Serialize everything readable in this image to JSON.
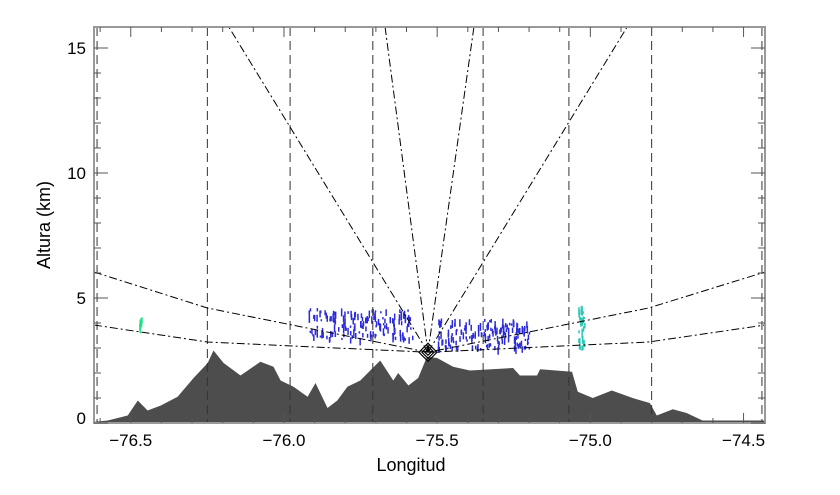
{
  "chart_data": {
    "type": "area",
    "title": "",
    "xlabel": "Longitud",
    "ylabel": "Altura (km)",
    "xlim": [
      -76.62,
      -74.43
    ],
    "ylim": [
      0,
      15.84
    ],
    "x_ticks": [
      "-76.5",
      "-76.0",
      "-75.5",
      "-75.0",
      "-74.5"
    ],
    "x_tick_values": [
      -76.5,
      -76.0,
      -75.5,
      -75.0,
      -74.5
    ],
    "y_ticks": [
      "0",
      "5",
      "10",
      "15"
    ],
    "y_tick_values": [
      0,
      5,
      10,
      15
    ],
    "grid": false,
    "colors": {
      "terrain": "#4d4d4d",
      "echo_blue": "#2b2bd9",
      "echo_green": "#22e08a",
      "echo_cyan": "#29c9b4",
      "lines": "#000000"
    },
    "radar": {
      "lon": -75.53,
      "alt": 2.83,
      "marker": "diamond"
    },
    "terrain": [
      [
        -76.617,
        0.05
      ],
      [
        -76.575,
        0.1
      ],
      [
        -76.51,
        0.3
      ],
      [
        -76.477,
        0.9
      ],
      [
        -76.445,
        0.5
      ],
      [
        -76.402,
        0.7
      ],
      [
        -76.347,
        1.05
      ],
      [
        -76.295,
        1.8
      ],
      [
        -76.249,
        2.4
      ],
      [
        -76.23,
        2.9
      ],
      [
        -76.197,
        2.4
      ],
      [
        -76.142,
        1.9
      ],
      [
        -76.077,
        2.45
      ],
      [
        -76.034,
        2.25
      ],
      [
        -76.011,
        1.7
      ],
      [
        -75.969,
        1.45
      ],
      [
        -75.923,
        1.05
      ],
      [
        -75.897,
        1.6
      ],
      [
        -75.858,
        0.6
      ],
      [
        -75.826,
        0.9
      ],
      [
        -75.793,
        1.45
      ],
      [
        -75.751,
        1.7
      ],
      [
        -75.686,
        2.5
      ],
      [
        -75.643,
        1.7
      ],
      [
        -75.627,
        2.0
      ],
      [
        -75.594,
        1.5
      ],
      [
        -75.562,
        1.8
      ],
      [
        -75.533,
        2.65
      ],
      [
        -75.5,
        2.6
      ],
      [
        -75.448,
        2.25
      ],
      [
        -75.393,
        2.1
      ],
      [
        -75.252,
        2.2
      ],
      [
        -75.23,
        1.9
      ],
      [
        -75.174,
        1.9
      ],
      [
        -75.164,
        2.15
      ],
      [
        -75.06,
        2.05
      ],
      [
        -75.041,
        1.25
      ],
      [
        -74.992,
        1.0
      ],
      [
        -74.93,
        1.3
      ],
      [
        -74.862,
        1.0
      ],
      [
        -74.806,
        0.8
      ],
      [
        -74.783,
        0.3
      ],
      [
        -74.731,
        0.55
      ],
      [
        -74.686,
        0.4
      ],
      [
        -74.634,
        0.1
      ],
      [
        -74.432,
        0.1
      ]
    ],
    "range_marks_lon": [
      -76.61,
      -76.25,
      -75.98,
      -75.71,
      -75.35,
      -75.07,
      -74.8,
      -74.44
    ],
    "rays_top_lon": [
      -76.18,
      -75.67,
      -75.38,
      -74.88
    ],
    "beams": [
      {
        "points": [
          [
            -76.62,
            6.04
          ],
          [
            -76.25,
            4.6
          ],
          [
            -75.53,
            2.83
          ],
          [
            -74.81,
            4.6
          ],
          [
            -74.43,
            6.04
          ]
        ]
      },
      {
        "points": [
          [
            -76.62,
            3.92
          ],
          [
            -76.25,
            3.24
          ],
          [
            -75.53,
            2.83
          ],
          [
            -74.81,
            3.24
          ],
          [
            -74.43,
            3.92
          ]
        ]
      }
    ],
    "echoes": [
      {
        "lon": [
          -75.92,
          -75.58
        ],
        "alt": [
          3.4,
          4.6
        ],
        "color": "echo_blue",
        "count": 160
      },
      {
        "lon": [
          -75.5,
          -75.2
        ],
        "alt": [
          3.0,
          4.2
        ],
        "color": "echo_blue",
        "count": 170
      },
      {
        "lon": [
          -76.475,
          -76.465
        ],
        "alt": [
          3.8,
          4.3
        ],
        "color": "echo_green",
        "count": 10
      },
      {
        "lon": [
          -75.04,
          -75.02
        ],
        "alt": [
          3.0,
          4.7
        ],
        "color": "echo_cyan",
        "count": 30
      }
    ]
  }
}
